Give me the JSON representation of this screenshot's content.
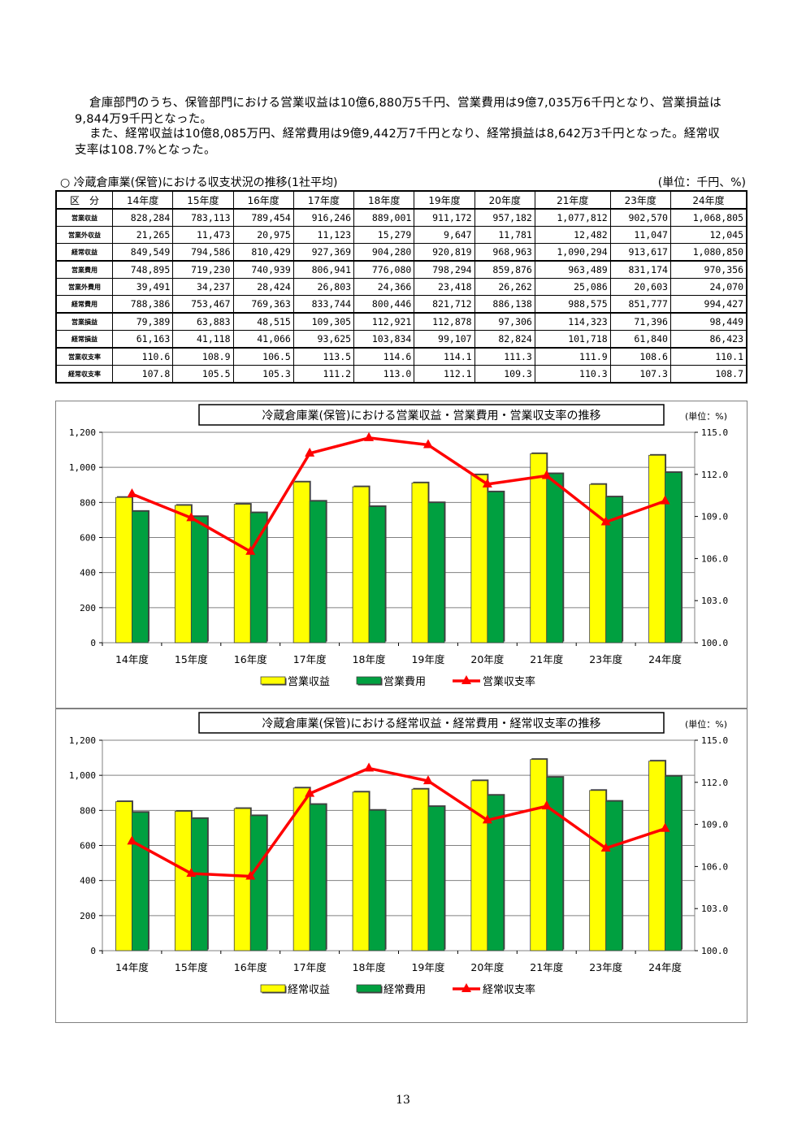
{
  "paragraphs": [
    "倉庫部門のうち、保管部門における営業収益は10億6,880万5千円、営業費用は9億7,035万6千円となり、営業損益は9,844万9千円となった。",
    "また、経常収益は10億8,085万円、経常費用は9億9,442万7千円となり、経常損益は8,642万3千円となった。経常収支率は108.7%となった。"
  ],
  "table": {
    "title": "○ 冷蔵倉庫業(保管)における収支状況の推移(1社平均)",
    "unit": "(単位：千円、%)",
    "header_label": "区　分",
    "columns": [
      "14年度",
      "15年度",
      "16年度",
      "17年度",
      "18年度",
      "19年度",
      "20年度",
      "21年度",
      "23年度",
      "24年度"
    ],
    "rows": [
      {
        "label": "営業収益",
        "values": [
          "828,284",
          "783,113",
          "789,454",
          "916,246",
          "889,001",
          "911,172",
          "957,182",
          "1,077,812",
          "902,570",
          "1,068,805"
        ]
      },
      {
        "label": "営業外収益",
        "values": [
          "21,265",
          "11,473",
          "20,975",
          "11,123",
          "15,279",
          "9,647",
          "11,781",
          "12,482",
          "11,047",
          "12,045"
        ]
      },
      {
        "label": "経常収益",
        "values": [
          "849,549",
          "794,586",
          "810,429",
          "927,369",
          "904,280",
          "920,819",
          "968,963",
          "1,090,294",
          "913,617",
          "1,080,850"
        ]
      },
      {
        "label": "営業費用",
        "values": [
          "748,895",
          "719,230",
          "740,939",
          "806,941",
          "776,080",
          "798,294",
          "859,876",
          "963,489",
          "831,174",
          "970,356"
        ]
      },
      {
        "label": "営業外費用",
        "values": [
          "39,491",
          "34,237",
          "28,424",
          "26,803",
          "24,366",
          "23,418",
          "26,262",
          "25,086",
          "20,603",
          "24,070"
        ]
      },
      {
        "label": "経常費用",
        "values": [
          "788,386",
          "753,467",
          "769,363",
          "833,744",
          "800,446",
          "821,712",
          "886,138",
          "988,575",
          "851,777",
          "994,427"
        ]
      },
      {
        "label": "営業損益",
        "values": [
          "79,389",
          "63,883",
          "48,515",
          "109,305",
          "112,921",
          "112,878",
          "97,306",
          "114,323",
          "71,396",
          "98,449"
        ]
      },
      {
        "label": "経常損益",
        "values": [
          "61,163",
          "41,118",
          "41,066",
          "93,625",
          "103,834",
          "99,107",
          "82,824",
          "101,718",
          "61,840",
          "86,423"
        ]
      },
      {
        "label": "営業収支率",
        "values": [
          "110.6",
          "108.9",
          "106.5",
          "113.5",
          "114.6",
          "114.1",
          "111.3",
          "111.9",
          "108.6",
          "110.1"
        ]
      },
      {
        "label": "経常収支率",
        "values": [
          "107.8",
          "105.5",
          "105.3",
          "111.2",
          "113.0",
          "112.1",
          "109.3",
          "110.3",
          "107.3",
          "108.7"
        ]
      }
    ]
  },
  "chart_data": [
    {
      "type": "bar",
      "title": "冷蔵倉庫業(保管)における営業収益・営業費用・営業収支率の推移",
      "unit_label": "(単位：%)",
      "categories": [
        "14年度",
        "15年度",
        "16年度",
        "17年度",
        "18年度",
        "19年度",
        "20年度",
        "21年度",
        "23年度",
        "24年度"
      ],
      "series": [
        {
          "name": "営業収益",
          "type": "bar",
          "axis": "left",
          "color": "#ffff00",
          "values": [
            828.3,
            783.1,
            789.5,
            916.2,
            889.0,
            911.2,
            957.2,
            1077.8,
            902.6,
            1068.8
          ]
        },
        {
          "name": "営業費用",
          "type": "bar",
          "axis": "left",
          "color": "#00a040",
          "values": [
            748.9,
            719.2,
            740.9,
            806.9,
            776.1,
            798.3,
            859.9,
            963.5,
            831.2,
            970.4
          ]
        },
        {
          "name": "営業収支率",
          "type": "line",
          "axis": "right",
          "color": "#ff0000",
          "values": [
            110.6,
            108.9,
            106.5,
            113.5,
            114.6,
            114.1,
            111.3,
            111.9,
            108.6,
            110.1
          ]
        }
      ],
      "ylim_left": [
        0,
        1200
      ],
      "yticks_left": [
        "0",
        "200",
        "400",
        "600",
        "800",
        "1,000",
        "1,200"
      ],
      "ylim_right": [
        100,
        115
      ],
      "yticks_right": [
        "100.0",
        "103.0",
        "106.0",
        "109.0",
        "112.0",
        "115.0"
      ],
      "grid": true,
      "legend_position": "bottom"
    },
    {
      "type": "bar",
      "title": "冷蔵倉庫業(保管)における経常収益・経常費用・経常収支率の推移",
      "unit_label": "(単位：%)",
      "categories": [
        "14年度",
        "15年度",
        "16年度",
        "17年度",
        "18年度",
        "19年度",
        "20年度",
        "21年度",
        "23年度",
        "24年度"
      ],
      "series": [
        {
          "name": "経常収益",
          "type": "bar",
          "axis": "left",
          "color": "#ffff00",
          "values": [
            849.5,
            794.6,
            810.4,
            927.4,
            904.3,
            920.8,
            969.0,
            1090.3,
            913.6,
            1080.9
          ]
        },
        {
          "name": "経常費用",
          "type": "bar",
          "axis": "left",
          "color": "#00a040",
          "values": [
            788.4,
            753.5,
            769.4,
            833.7,
            800.4,
            821.7,
            886.1,
            988.6,
            851.8,
            994.4
          ]
        },
        {
          "name": "経常収支率",
          "type": "line",
          "axis": "right",
          "color": "#ff0000",
          "values": [
            107.8,
            105.5,
            105.3,
            111.2,
            113.0,
            112.1,
            109.3,
            110.3,
            107.3,
            108.7
          ]
        }
      ],
      "ylim_left": [
        0,
        1200
      ],
      "yticks_left": [
        "0",
        "200",
        "400",
        "600",
        "800",
        "1,000",
        "1,200"
      ],
      "ylim_right": [
        100,
        115
      ],
      "yticks_right": [
        "100.0",
        "103.0",
        "106.0",
        "109.0",
        "112.0",
        "115.0"
      ],
      "grid": true,
      "legend_position": "bottom"
    }
  ],
  "page_number": "13"
}
